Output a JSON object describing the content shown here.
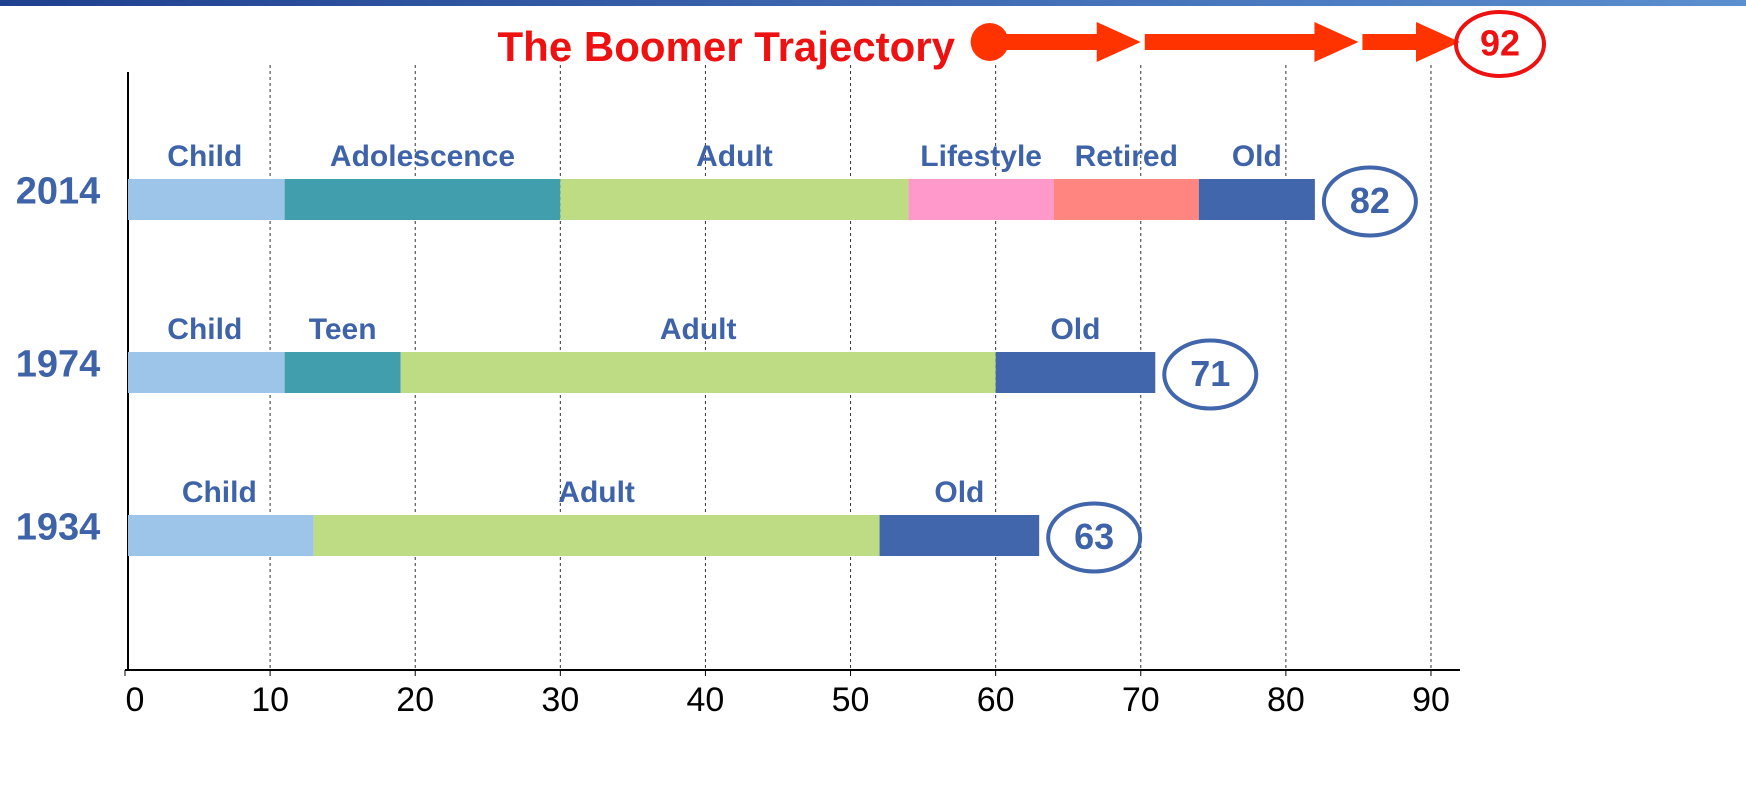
{
  "chart_data": {
    "type": "stacked-barh",
    "xlim": [
      0,
      92
    ],
    "xticks": [
      0,
      10,
      20,
      30,
      40,
      50,
      60,
      70,
      80,
      90
    ],
    "grid": true,
    "rows": [
      {
        "category": "2014",
        "end_label": 82,
        "segments": [
          {
            "name": "Child",
            "value": 11,
            "color": "#9dc5ea"
          },
          {
            "name": "Adolescence",
            "value": 19,
            "color": "#409ead"
          },
          {
            "name": "Adult",
            "value": 24,
            "color": "#bddc84"
          },
          {
            "name": "Lifestyle",
            "value": 10,
            "color": "#ff99cc"
          },
          {
            "name": "Retired",
            "value": 10,
            "color": "#ff8680"
          },
          {
            "name": "Old",
            "value": 8,
            "color": "#4266ab"
          }
        ]
      },
      {
        "category": "1974",
        "end_label": 71,
        "segments": [
          {
            "name": "Child",
            "value": 11,
            "color": "#9dc5ea"
          },
          {
            "name": "Teen",
            "value": 8,
            "color": "#409ead"
          },
          {
            "name": "Adult",
            "value": 41,
            "color": "#bddc84"
          },
          {
            "name": "Old",
            "value": 11,
            "color": "#4266ab"
          }
        ]
      },
      {
        "category": "1934",
        "end_label": 63,
        "segments": [
          {
            "name": "Child",
            "value": 13,
            "color": "#9dc5ea"
          },
          {
            "name": "Adult",
            "value": 39,
            "color": "#bddc84"
          },
          {
            "name": "Old",
            "value": 11,
            "color": "#4266ab"
          }
        ]
      }
    ],
    "trajectory": {
      "title": "The Boomer Trajectory",
      "points": [
        60,
        70,
        85,
        92
      ],
      "end_label": 92,
      "color": "#ff3300"
    }
  }
}
